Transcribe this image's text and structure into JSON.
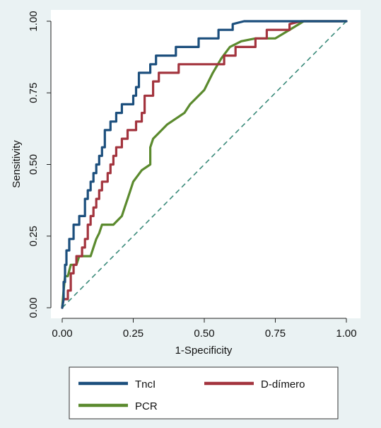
{
  "chart_data": {
    "type": "line",
    "title": "",
    "xlabel": "1-Specificity",
    "ylabel": "Sensitivity",
    "xlim": [
      0,
      1
    ],
    "ylim": [
      0,
      1
    ],
    "x_ticks": [
      "0.00",
      "0.25",
      "0.50",
      "0.75",
      "1.00"
    ],
    "y_ticks": [
      "0.00",
      "0.25",
      "0.50",
      "0.75",
      "1.00"
    ],
    "grid": false,
    "legend_placement": "bottom",
    "reference_line": {
      "style": "dashed",
      "color": "#3a8a7a",
      "points": [
        [
          0,
          0
        ],
        [
          1,
          1
        ]
      ]
    },
    "series": [
      {
        "name": "TncI",
        "color": "#1c4f7d",
        "points": [
          [
            0,
            0
          ],
          [
            0.005,
            0.03
          ],
          [
            0.005,
            0.09
          ],
          [
            0.01,
            0.09
          ],
          [
            0.01,
            0.15
          ],
          [
            0.015,
            0.15
          ],
          [
            0.015,
            0.2
          ],
          [
            0.025,
            0.2
          ],
          [
            0.025,
            0.24
          ],
          [
            0.04,
            0.24
          ],
          [
            0.04,
            0.29
          ],
          [
            0.06,
            0.29
          ],
          [
            0.06,
            0.32
          ],
          [
            0.08,
            0.32
          ],
          [
            0.08,
            0.38
          ],
          [
            0.09,
            0.38
          ],
          [
            0.09,
            0.41
          ],
          [
            0.1,
            0.41
          ],
          [
            0.1,
            0.44
          ],
          [
            0.11,
            0.44
          ],
          [
            0.11,
            0.47
          ],
          [
            0.12,
            0.47
          ],
          [
            0.12,
            0.5
          ],
          [
            0.13,
            0.5
          ],
          [
            0.13,
            0.53
          ],
          [
            0.14,
            0.53
          ],
          [
            0.14,
            0.56
          ],
          [
            0.15,
            0.56
          ],
          [
            0.15,
            0.62
          ],
          [
            0.17,
            0.62
          ],
          [
            0.17,
            0.65
          ],
          [
            0.19,
            0.65
          ],
          [
            0.19,
            0.68
          ],
          [
            0.21,
            0.68
          ],
          [
            0.21,
            0.71
          ],
          [
            0.25,
            0.71
          ],
          [
            0.25,
            0.74
          ],
          [
            0.26,
            0.74
          ],
          [
            0.26,
            0.77
          ],
          [
            0.27,
            0.77
          ],
          [
            0.27,
            0.82
          ],
          [
            0.31,
            0.82
          ],
          [
            0.31,
            0.85
          ],
          [
            0.33,
            0.85
          ],
          [
            0.33,
            0.88
          ],
          [
            0.4,
            0.88
          ],
          [
            0.4,
            0.91
          ],
          [
            0.48,
            0.91
          ],
          [
            0.48,
            0.94
          ],
          [
            0.55,
            0.94
          ],
          [
            0.55,
            0.97
          ],
          [
            0.6,
            0.97
          ],
          [
            0.6,
            0.99
          ],
          [
            0.64,
            1.0
          ],
          [
            1.0,
            1.0
          ]
        ]
      },
      {
        "name": "D-dímero",
        "color": "#a3343e",
        "points": [
          [
            0,
            0
          ],
          [
            0.005,
            0.03
          ],
          [
            0.02,
            0.03
          ],
          [
            0.02,
            0.06
          ],
          [
            0.03,
            0.06
          ],
          [
            0.03,
            0.12
          ],
          [
            0.04,
            0.12
          ],
          [
            0.04,
            0.15
          ],
          [
            0.05,
            0.15
          ],
          [
            0.05,
            0.18
          ],
          [
            0.07,
            0.18
          ],
          [
            0.07,
            0.21
          ],
          [
            0.08,
            0.21
          ],
          [
            0.08,
            0.24
          ],
          [
            0.09,
            0.24
          ],
          [
            0.09,
            0.29
          ],
          [
            0.1,
            0.29
          ],
          [
            0.1,
            0.32
          ],
          [
            0.11,
            0.32
          ],
          [
            0.11,
            0.35
          ],
          [
            0.12,
            0.35
          ],
          [
            0.12,
            0.38
          ],
          [
            0.13,
            0.38
          ],
          [
            0.13,
            0.41
          ],
          [
            0.14,
            0.41
          ],
          [
            0.14,
            0.44
          ],
          [
            0.16,
            0.44
          ],
          [
            0.16,
            0.47
          ],
          [
            0.17,
            0.47
          ],
          [
            0.17,
            0.5
          ],
          [
            0.18,
            0.5
          ],
          [
            0.18,
            0.53
          ],
          [
            0.19,
            0.53
          ],
          [
            0.19,
            0.56
          ],
          [
            0.21,
            0.56
          ],
          [
            0.21,
            0.59
          ],
          [
            0.23,
            0.59
          ],
          [
            0.23,
            0.62
          ],
          [
            0.26,
            0.62
          ],
          [
            0.26,
            0.65
          ],
          [
            0.28,
            0.65
          ],
          [
            0.28,
            0.68
          ],
          [
            0.29,
            0.68
          ],
          [
            0.29,
            0.74
          ],
          [
            0.32,
            0.74
          ],
          [
            0.32,
            0.79
          ],
          [
            0.34,
            0.79
          ],
          [
            0.34,
            0.82
          ],
          [
            0.41,
            0.82
          ],
          [
            0.41,
            0.85
          ],
          [
            0.57,
            0.85
          ],
          [
            0.57,
            0.88
          ],
          [
            0.61,
            0.88
          ],
          [
            0.61,
            0.91
          ],
          [
            0.68,
            0.91
          ],
          [
            0.68,
            0.94
          ],
          [
            0.72,
            0.94
          ],
          [
            0.72,
            0.97
          ],
          [
            0.8,
            0.97
          ],
          [
            0.8,
            0.99
          ],
          [
            0.84,
            1.0
          ],
          [
            1.0,
            1.0
          ]
        ]
      },
      {
        "name": "PCR",
        "color": "#5b8a2e",
        "points": [
          [
            0,
            0
          ],
          [
            0.005,
            0.06
          ],
          [
            0.01,
            0.11
          ],
          [
            0.02,
            0.11
          ],
          [
            0.03,
            0.15
          ],
          [
            0.05,
            0.15
          ],
          [
            0.06,
            0.18
          ],
          [
            0.09,
            0.18
          ],
          [
            0.1,
            0.18
          ],
          [
            0.11,
            0.21
          ],
          [
            0.12,
            0.24
          ],
          [
            0.13,
            0.26
          ],
          [
            0.14,
            0.29
          ],
          [
            0.18,
            0.29
          ],
          [
            0.19,
            0.3
          ],
          [
            0.21,
            0.32
          ],
          [
            0.22,
            0.35
          ],
          [
            0.23,
            0.38
          ],
          [
            0.24,
            0.41
          ],
          [
            0.25,
            0.44
          ],
          [
            0.28,
            0.48
          ],
          [
            0.31,
            0.5
          ],
          [
            0.31,
            0.56
          ],
          [
            0.32,
            0.59
          ],
          [
            0.35,
            0.62
          ],
          [
            0.37,
            0.64
          ],
          [
            0.4,
            0.66
          ],
          [
            0.43,
            0.68
          ],
          [
            0.45,
            0.71
          ],
          [
            0.47,
            0.73
          ],
          [
            0.5,
            0.76
          ],
          [
            0.53,
            0.82
          ],
          [
            0.56,
            0.87
          ],
          [
            0.59,
            0.91
          ],
          [
            0.63,
            0.93
          ],
          [
            0.68,
            0.94
          ],
          [
            0.75,
            0.94
          ],
          [
            0.8,
            0.97
          ],
          [
            0.85,
            1.0
          ],
          [
            1.0,
            1.0
          ]
        ]
      }
    ]
  }
}
